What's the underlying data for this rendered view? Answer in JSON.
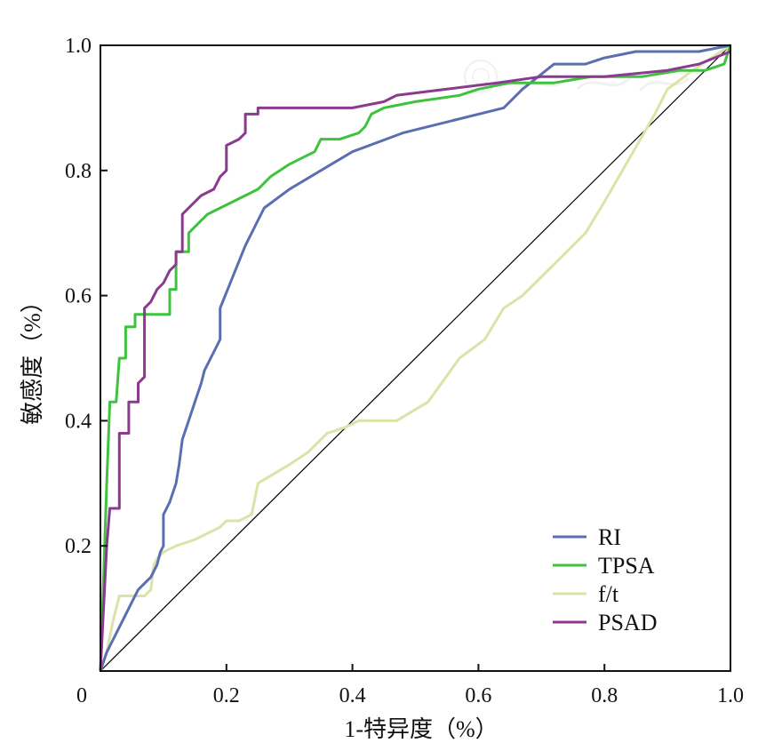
{
  "chart_data": {
    "type": "line",
    "title": "",
    "xlabel": "1-特异度（%）",
    "ylabel": "敏感度（%）",
    "xlim": [
      0,
      1
    ],
    "ylim": [
      0,
      1
    ],
    "x_ticks": [
      {
        "value": 0,
        "label": "0"
      },
      {
        "value": 0.2,
        "label": "0.2"
      },
      {
        "value": 0.4,
        "label": "0.4"
      },
      {
        "value": 0.6,
        "label": "0.6"
      },
      {
        "value": 0.8,
        "label": "0.8"
      },
      {
        "value": 1.0,
        "label": "1.0"
      }
    ],
    "y_ticks": [
      {
        "value": 0.2,
        "label": "0.2"
      },
      {
        "value": 0.4,
        "label": "0.4"
      },
      {
        "value": 0.6,
        "label": "0.6"
      },
      {
        "value": 0.8,
        "label": "0.8"
      },
      {
        "value": 1.0,
        "label": "1.0"
      }
    ],
    "grid": false,
    "legend_position": "bottom-right",
    "reference_line": {
      "name": "chance",
      "from": [
        0,
        0
      ],
      "to": [
        1,
        1
      ],
      "color": "#000000"
    },
    "series": [
      {
        "name": "RI",
        "color": "#5a6fb0",
        "points": [
          [
            0,
            0
          ],
          [
            0.01,
            0.03
          ],
          [
            0.03,
            0.07
          ],
          [
            0.05,
            0.11
          ],
          [
            0.06,
            0.13
          ],
          [
            0.07,
            0.14
          ],
          [
            0.08,
            0.15
          ],
          [
            0.09,
            0.17
          ],
          [
            0.095,
            0.19
          ],
          [
            0.1,
            0.2
          ],
          [
            0.1,
            0.25
          ],
          [
            0.11,
            0.27
          ],
          [
            0.12,
            0.3
          ],
          [
            0.125,
            0.33
          ],
          [
            0.13,
            0.37
          ],
          [
            0.14,
            0.4
          ],
          [
            0.15,
            0.43
          ],
          [
            0.16,
            0.46
          ],
          [
            0.165,
            0.48
          ],
          [
            0.18,
            0.51
          ],
          [
            0.19,
            0.53
          ],
          [
            0.19,
            0.58
          ],
          [
            0.21,
            0.63
          ],
          [
            0.23,
            0.68
          ],
          [
            0.26,
            0.74
          ],
          [
            0.3,
            0.77
          ],
          [
            0.35,
            0.8
          ],
          [
            0.4,
            0.83
          ],
          [
            0.48,
            0.86
          ],
          [
            0.56,
            0.88
          ],
          [
            0.64,
            0.9
          ],
          [
            0.67,
            0.93
          ],
          [
            0.72,
            0.97
          ],
          [
            0.77,
            0.97
          ],
          [
            0.8,
            0.98
          ],
          [
            0.85,
            0.99
          ],
          [
            0.9,
            0.99
          ],
          [
            0.95,
            0.99
          ],
          [
            1.0,
            1.0
          ]
        ]
      },
      {
        "name": "TPSA",
        "color": "#3fc23f",
        "points": [
          [
            0,
            0
          ],
          [
            0.01,
            0.3
          ],
          [
            0.015,
            0.43
          ],
          [
            0.025,
            0.43
          ],
          [
            0.03,
            0.5
          ],
          [
            0.04,
            0.5
          ],
          [
            0.04,
            0.55
          ],
          [
            0.055,
            0.55
          ],
          [
            0.055,
            0.57
          ],
          [
            0.11,
            0.57
          ],
          [
            0.11,
            0.61
          ],
          [
            0.12,
            0.61
          ],
          [
            0.12,
            0.67
          ],
          [
            0.14,
            0.67
          ],
          [
            0.14,
            0.7
          ],
          [
            0.15,
            0.71
          ],
          [
            0.16,
            0.72
          ],
          [
            0.17,
            0.73
          ],
          [
            0.19,
            0.74
          ],
          [
            0.21,
            0.75
          ],
          [
            0.23,
            0.76
          ],
          [
            0.25,
            0.77
          ],
          [
            0.27,
            0.79
          ],
          [
            0.3,
            0.81
          ],
          [
            0.32,
            0.82
          ],
          [
            0.34,
            0.83
          ],
          [
            0.35,
            0.85
          ],
          [
            0.38,
            0.85
          ],
          [
            0.41,
            0.86
          ],
          [
            0.42,
            0.87
          ],
          [
            0.43,
            0.89
          ],
          [
            0.45,
            0.9
          ],
          [
            0.5,
            0.91
          ],
          [
            0.57,
            0.92
          ],
          [
            0.6,
            0.93
          ],
          [
            0.65,
            0.94
          ],
          [
            0.72,
            0.94
          ],
          [
            0.78,
            0.95
          ],
          [
            0.86,
            0.95
          ],
          [
            0.92,
            0.96
          ],
          [
            0.96,
            0.96
          ],
          [
            0.99,
            0.97
          ],
          [
            1.0,
            1.0
          ]
        ]
      },
      {
        "name": "f/t",
        "color": "#dce3a8",
        "points": [
          [
            0,
            0
          ],
          [
            0.01,
            0.03
          ],
          [
            0.02,
            0.08
          ],
          [
            0.03,
            0.12
          ],
          [
            0.05,
            0.12
          ],
          [
            0.06,
            0.12
          ],
          [
            0.07,
            0.12
          ],
          [
            0.08,
            0.13
          ],
          [
            0.085,
            0.17
          ],
          [
            0.09,
            0.18
          ],
          [
            0.1,
            0.19
          ],
          [
            0.12,
            0.2
          ],
          [
            0.15,
            0.21
          ],
          [
            0.17,
            0.22
          ],
          [
            0.19,
            0.23
          ],
          [
            0.2,
            0.24
          ],
          [
            0.22,
            0.24
          ],
          [
            0.24,
            0.25
          ],
          [
            0.25,
            0.3
          ],
          [
            0.3,
            0.33
          ],
          [
            0.33,
            0.35
          ],
          [
            0.36,
            0.38
          ],
          [
            0.39,
            0.39
          ],
          [
            0.41,
            0.4
          ],
          [
            0.47,
            0.4
          ],
          [
            0.52,
            0.43
          ],
          [
            0.57,
            0.5
          ],
          [
            0.61,
            0.53
          ],
          [
            0.64,
            0.58
          ],
          [
            0.67,
            0.6
          ],
          [
            0.7,
            0.63
          ],
          [
            0.73,
            0.66
          ],
          [
            0.77,
            0.7
          ],
          [
            0.8,
            0.75
          ],
          [
            0.84,
            0.82
          ],
          [
            0.88,
            0.89
          ],
          [
            0.9,
            0.93
          ],
          [
            0.94,
            0.96
          ],
          [
            0.97,
            0.98
          ],
          [
            1.0,
            1.0
          ]
        ]
      },
      {
        "name": "PSAD",
        "color": "#8b3a8f",
        "points": [
          [
            0,
            0
          ],
          [
            0.01,
            0.2
          ],
          [
            0.015,
            0.26
          ],
          [
            0.03,
            0.26
          ],
          [
            0.03,
            0.38
          ],
          [
            0.045,
            0.38
          ],
          [
            0.045,
            0.43
          ],
          [
            0.06,
            0.43
          ],
          [
            0.06,
            0.46
          ],
          [
            0.07,
            0.47
          ],
          [
            0.07,
            0.58
          ],
          [
            0.08,
            0.59
          ],
          [
            0.09,
            0.61
          ],
          [
            0.1,
            0.62
          ],
          [
            0.11,
            0.64
          ],
          [
            0.12,
            0.65
          ],
          [
            0.12,
            0.67
          ],
          [
            0.13,
            0.67
          ],
          [
            0.13,
            0.73
          ],
          [
            0.15,
            0.75
          ],
          [
            0.16,
            0.76
          ],
          [
            0.18,
            0.77
          ],
          [
            0.19,
            0.79
          ],
          [
            0.2,
            0.8
          ],
          [
            0.2,
            0.84
          ],
          [
            0.22,
            0.85
          ],
          [
            0.23,
            0.86
          ],
          [
            0.23,
            0.89
          ],
          [
            0.25,
            0.89
          ],
          [
            0.25,
            0.9
          ],
          [
            0.4,
            0.9
          ],
          [
            0.45,
            0.91
          ],
          [
            0.47,
            0.92
          ],
          [
            0.55,
            0.93
          ],
          [
            0.63,
            0.94
          ],
          [
            0.7,
            0.95
          ],
          [
            0.8,
            0.95
          ],
          [
            0.9,
            0.96
          ],
          [
            0.95,
            0.97
          ],
          [
            1.0,
            0.99
          ]
        ]
      }
    ]
  }
}
